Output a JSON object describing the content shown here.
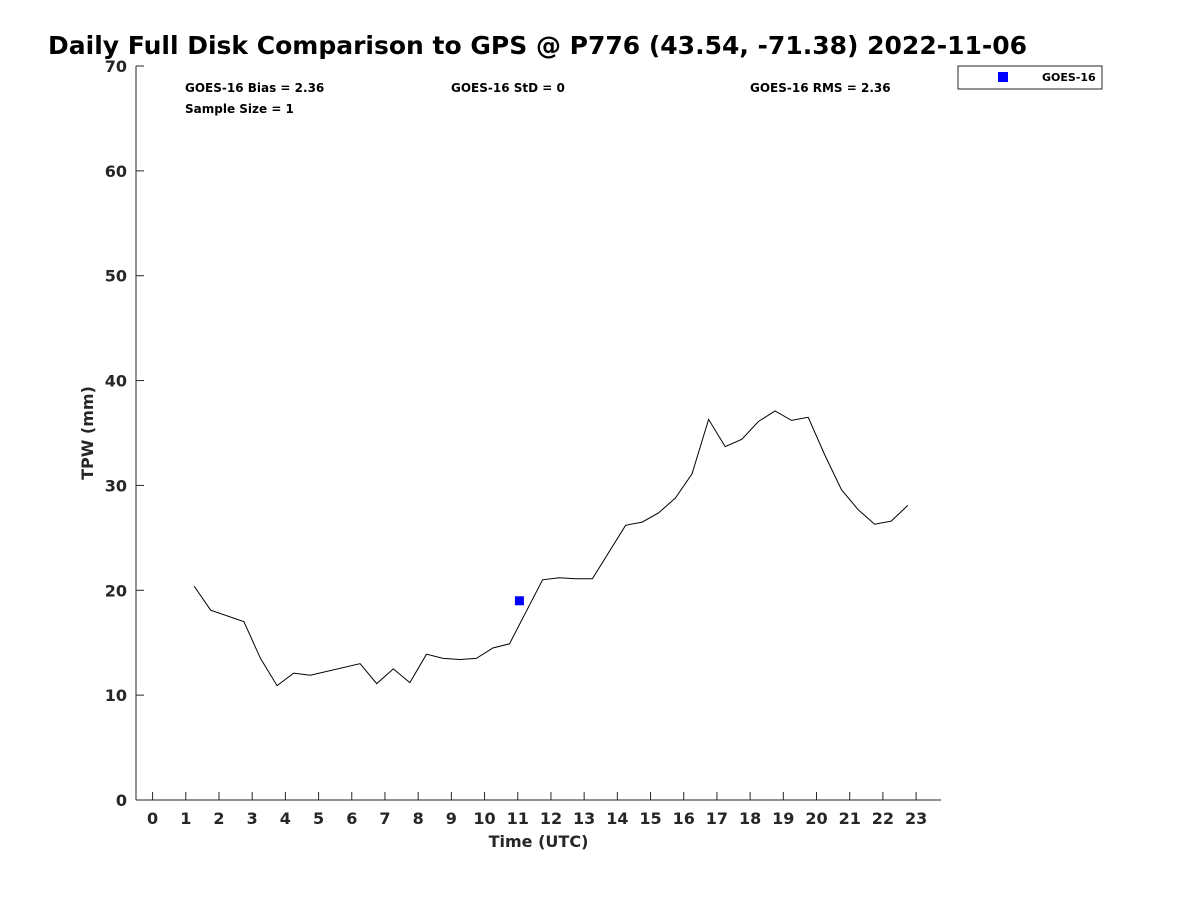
{
  "chart_data": {
    "type": "line",
    "title": "Daily Full Disk Comparison to GPS @ P776 (43.54, -71.38) 2022-11-06",
    "xlabel": "Time (UTC)",
    "ylabel": "TPW (mm)",
    "xlim": [
      -0.5,
      23.75
    ],
    "ylim": [
      0,
      70
    ],
    "x_ticks": [
      0,
      1,
      2,
      3,
      4,
      5,
      6,
      7,
      8,
      9,
      10,
      11,
      12,
      13,
      14,
      15,
      16,
      17,
      18,
      19,
      20,
      21,
      22,
      23
    ],
    "y_ticks": [
      0,
      10,
      20,
      30,
      40,
      50,
      60,
      70
    ],
    "grid": false,
    "legend_position": "outside-top-right",
    "stats": {
      "bias": "GOES-16 Bias = 2.36",
      "sample_size": "Sample Size = 1",
      "std": "GOES-16 StD = 0",
      "rms": "GOES-16 RMS = 2.36"
    },
    "series": [
      {
        "type": "line",
        "color": "#000000",
        "x": [
          1.25,
          1.75,
          2.75,
          3.25,
          3.75,
          4.25,
          4.75,
          6.25,
          6.75,
          7.25,
          7.75,
          8.25,
          8.75,
          9.25,
          9.75,
          10.25,
          10.75,
          11.75,
          12.25,
          12.75,
          13.25,
          14.25,
          14.75,
          15.25,
          15.75,
          16.25,
          16.75,
          17.25,
          17.75,
          18.25,
          18.75,
          19.25,
          19.75,
          20.25,
          20.75,
          21.25,
          21.75,
          22.25,
          22.75
        ],
        "y": [
          20.4,
          18.1,
          17.0,
          13.5,
          10.9,
          12.1,
          11.9,
          13.0,
          11.1,
          12.5,
          11.2,
          13.9,
          13.5,
          13.4,
          13.5,
          14.5,
          14.9,
          21.0,
          21.2,
          21.1,
          21.1,
          26.2,
          26.5,
          27.4,
          28.8,
          31.1,
          36.3,
          33.7,
          34.4,
          36.1,
          37.1,
          36.2,
          36.5,
          32.9,
          29.6,
          27.7,
          26.3,
          26.6,
          28.1
        ]
      },
      {
        "name": "GOES-16",
        "type": "scatter",
        "marker": "square",
        "color": "#0000ff",
        "x": [
          11.05
        ],
        "y": [
          19.0
        ]
      }
    ]
  }
}
